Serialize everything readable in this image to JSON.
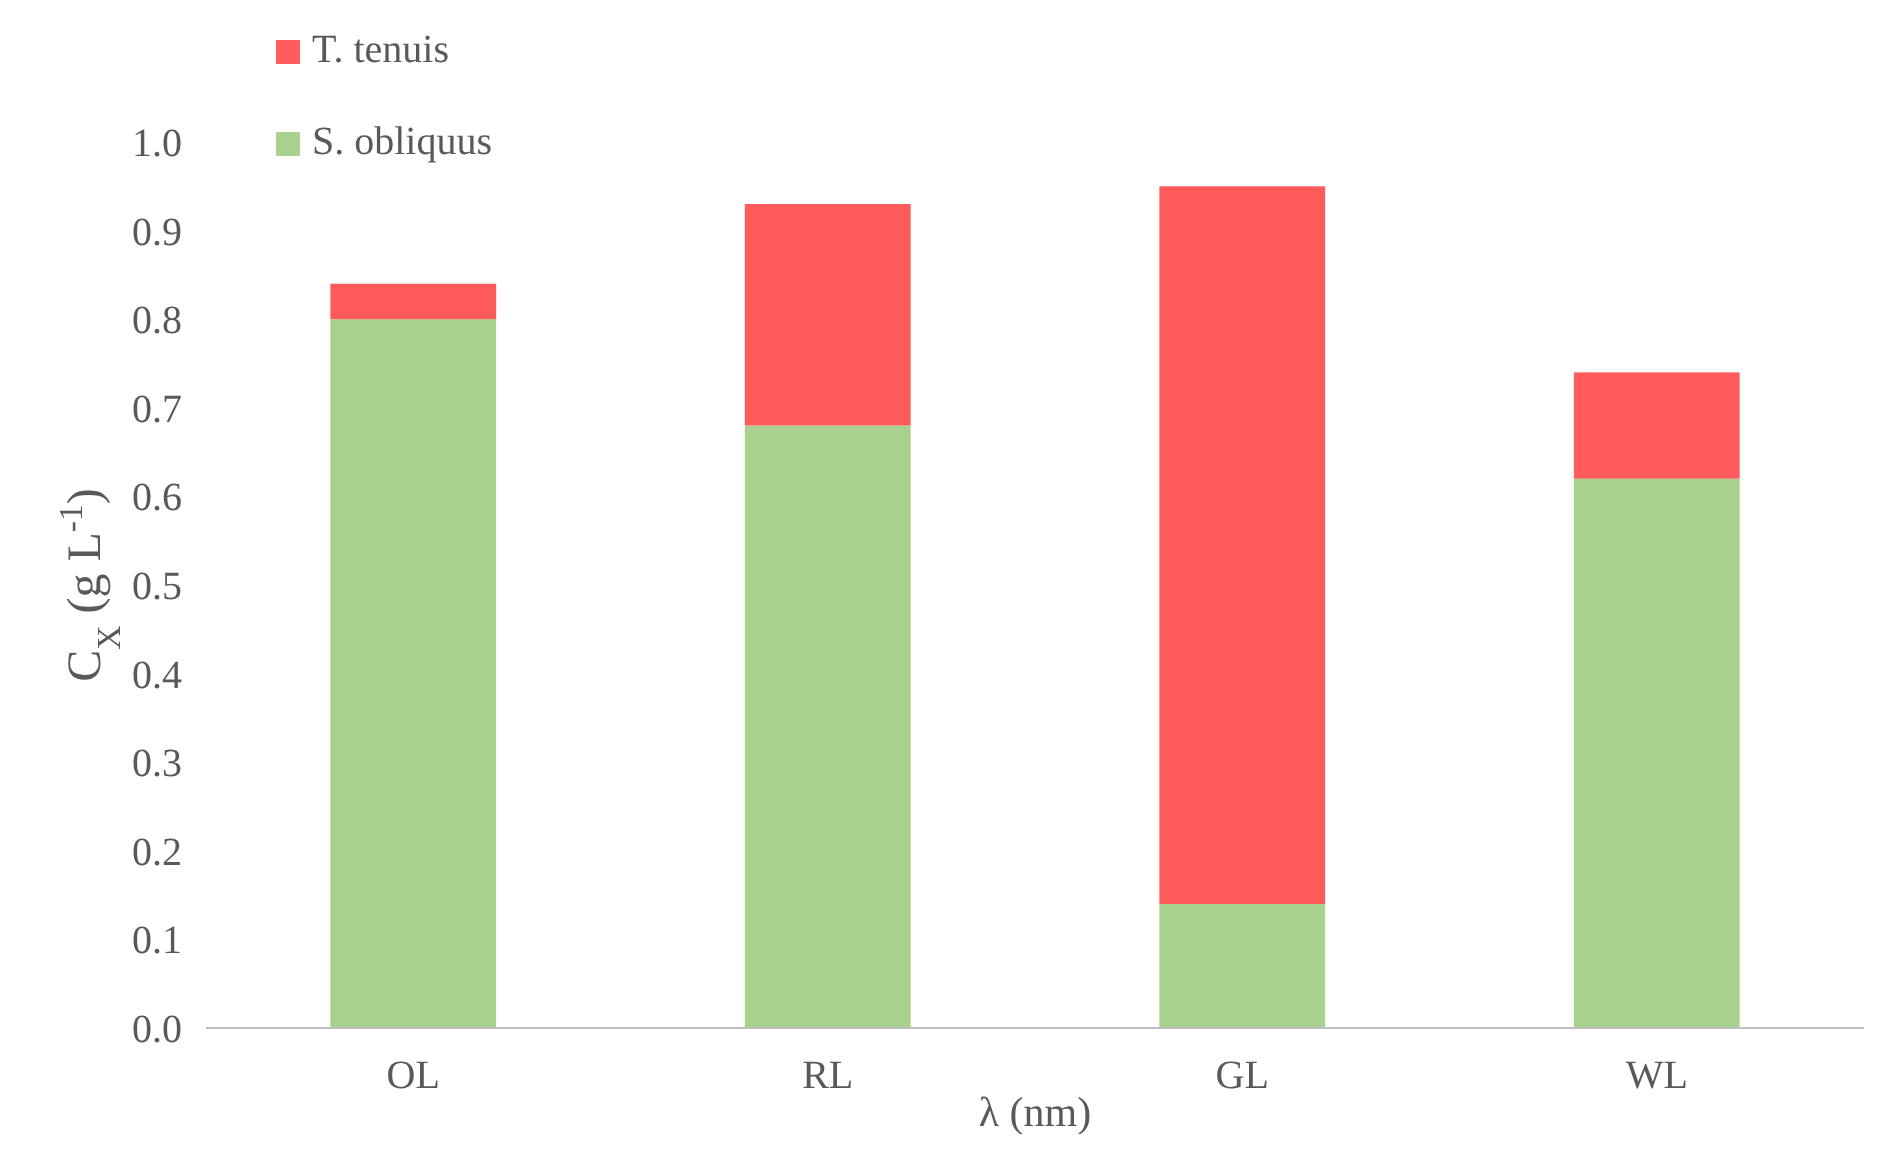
{
  "chart_data": {
    "type": "bar",
    "stacked": true,
    "categories": [
      "OL",
      "RL",
      "GL",
      "WL"
    ],
    "series": [
      {
        "name": "S. obliquus",
        "color": "#a9d18e",
        "values": [
          0.8,
          0.68,
          0.14,
          0.62
        ]
      },
      {
        "name": "T. tenuis",
        "color": "#ff5b5b",
        "values": [
          0.04,
          0.25,
          0.81,
          0.12
        ]
      }
    ],
    "xlabel": "λ (nm)",
    "ylabel": "C$_{X}$ (g L$^{-1}$)",
    "ylim": [
      0,
      1
    ],
    "yticks": [
      {
        "value": 0,
        "label": "0.0"
      },
      {
        "value": 0.1,
        "label": "0.1"
      },
      {
        "value": 0.2,
        "label": "0.2"
      },
      {
        "value": 0.3,
        "label": "0.3"
      },
      {
        "value": 0.4,
        "label": "0.4"
      },
      {
        "value": 0.5,
        "label": "0.5"
      },
      {
        "value": 0.6,
        "label": "0.6"
      },
      {
        "value": 0.7,
        "label": "0.7"
      },
      {
        "value": 0.8,
        "label": "0.8"
      },
      {
        "value": 0.9,
        "label": "0.9"
      },
      {
        "value": 1,
        "label": "1.0"
      }
    ],
    "legend": "top left",
    "grid": false
  }
}
